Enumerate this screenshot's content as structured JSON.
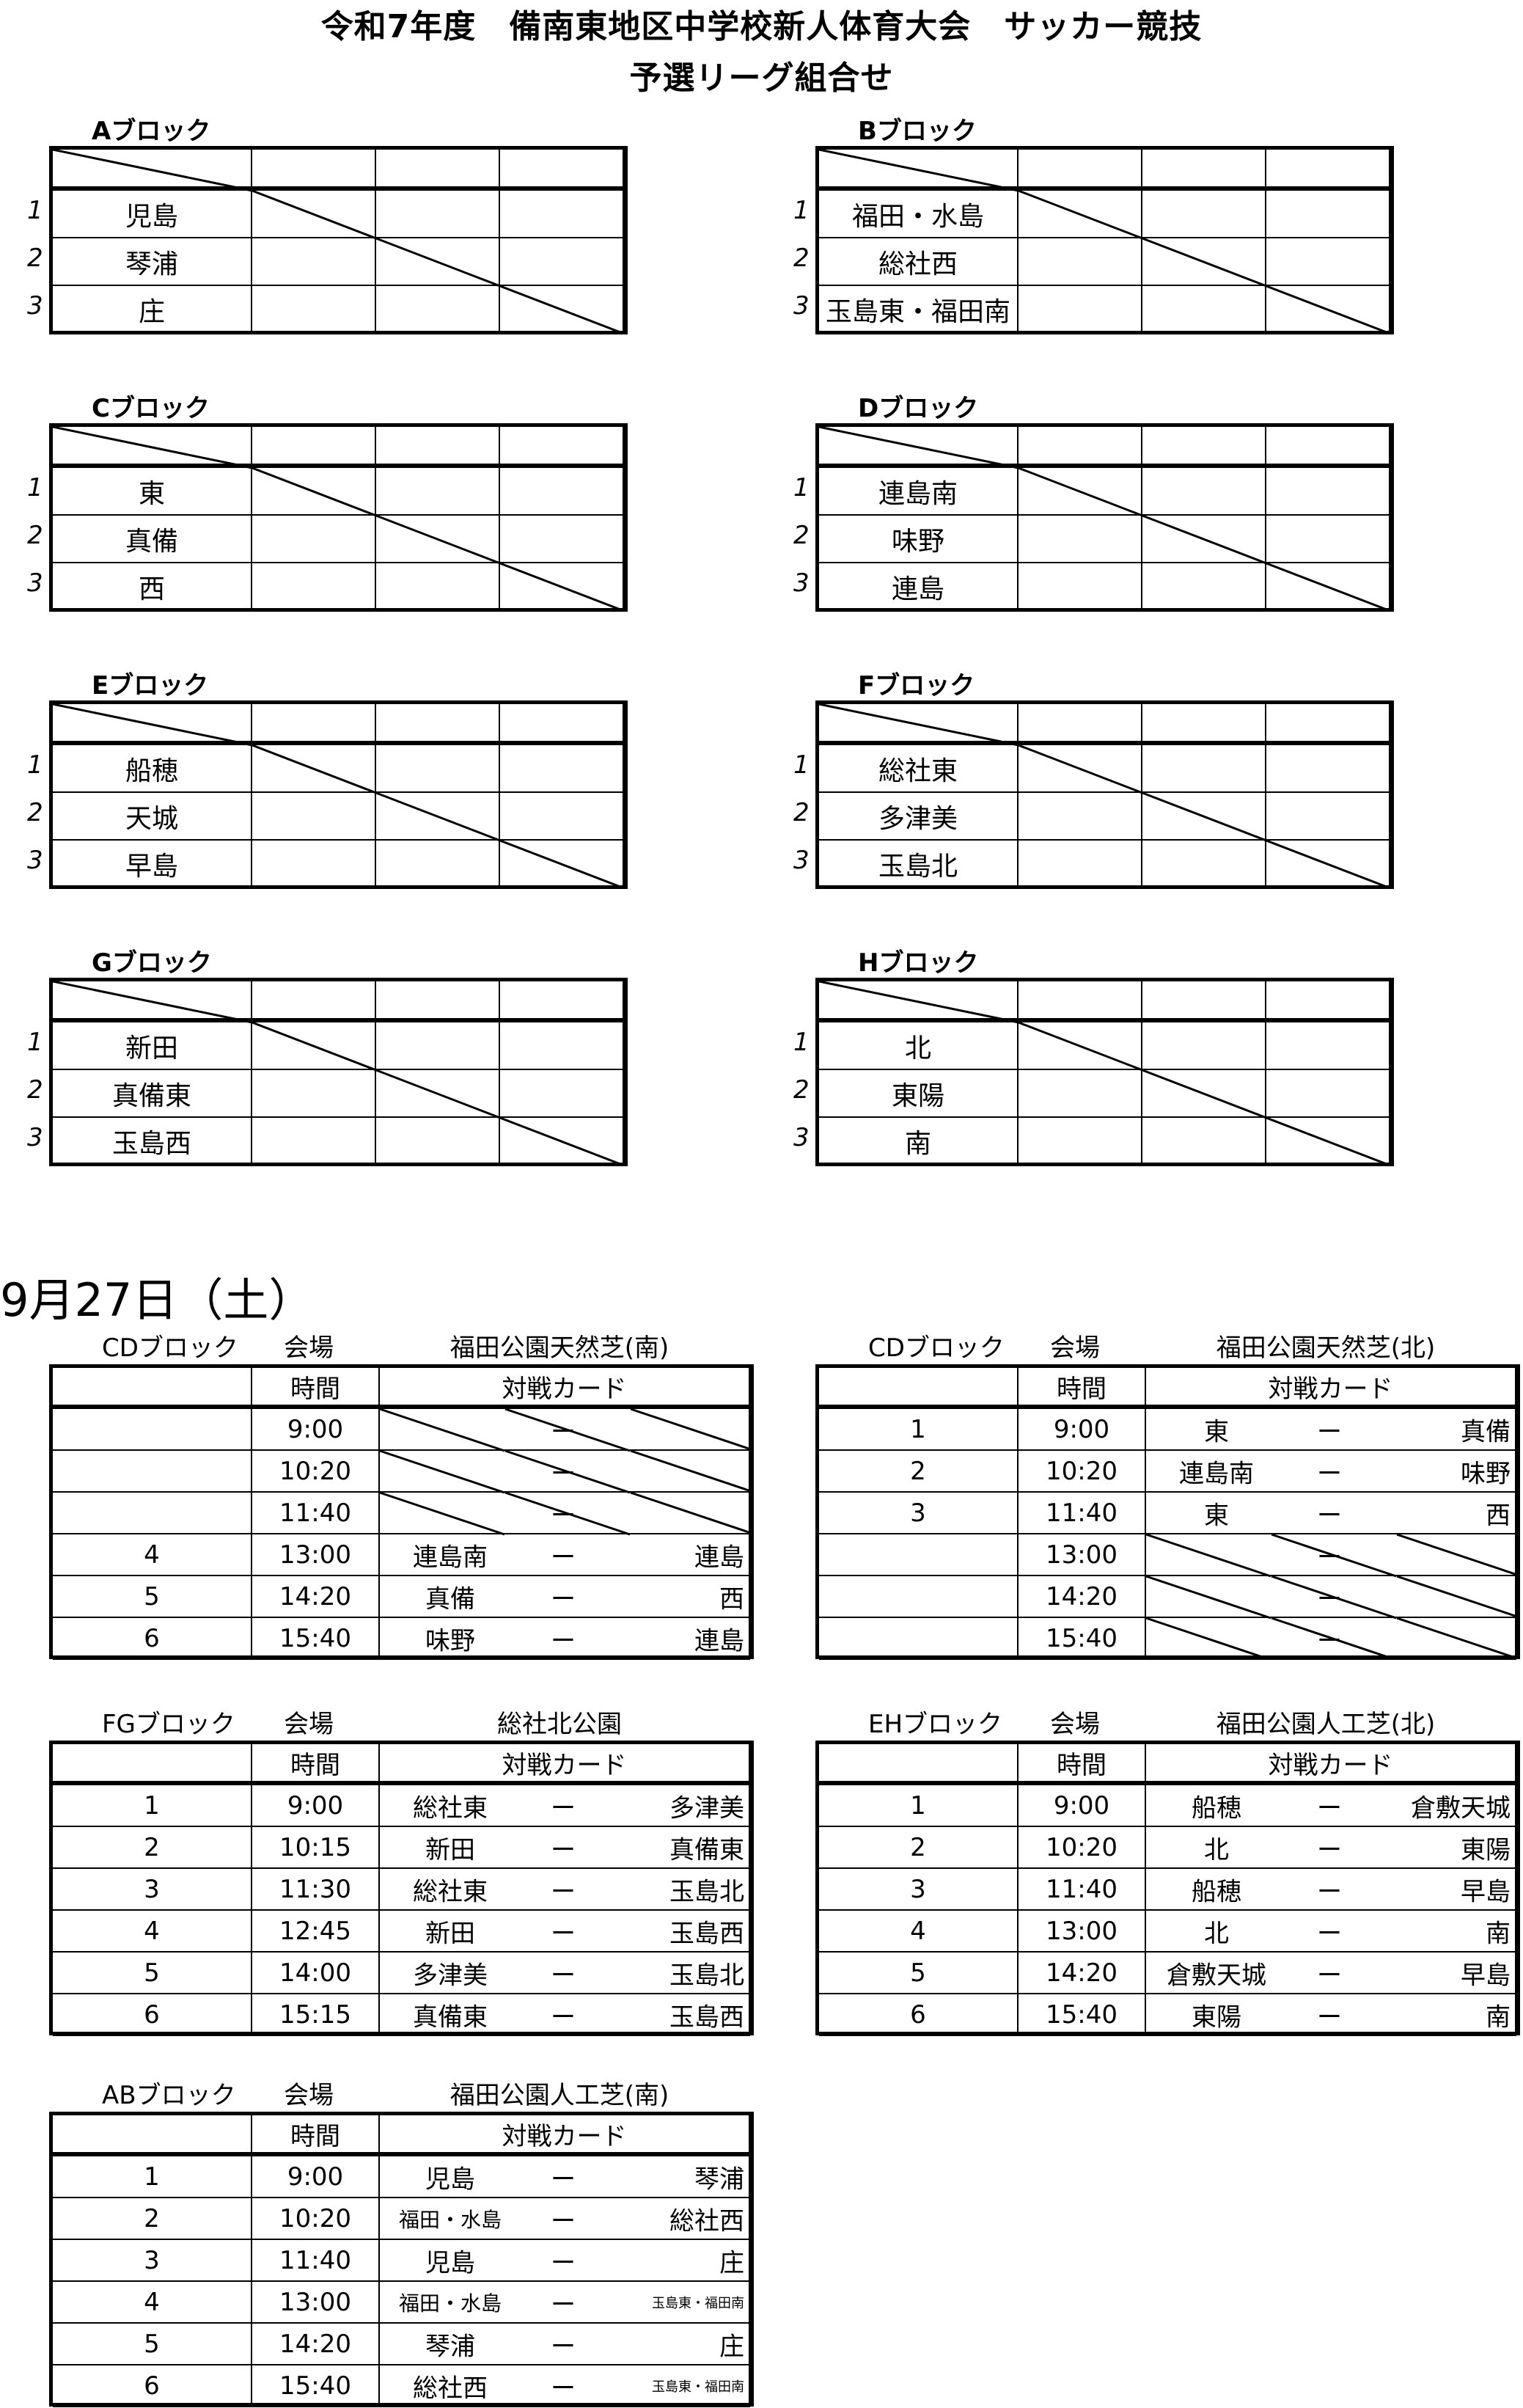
{
  "title": {
    "line1": "令和7年度　備南東地区中学校新人体育大会　サッカー競技",
    "line2": "予選リーグ組合せ"
  },
  "round_robin": [
    {
      "label": "Aブロック",
      "teams": [
        "児島",
        "琴浦",
        "庄"
      ]
    },
    {
      "label": "Bブロック",
      "teams": [
        "福田・水島",
        "総社西",
        "玉島東・福田南"
      ]
    },
    {
      "label": "Cブロック",
      "teams": [
        "東",
        "真備",
        "西"
      ]
    },
    {
      "label": "Dブロック",
      "teams": [
        "連島南",
        "味野",
        "連島"
      ]
    },
    {
      "label": "Eブロック",
      "teams": [
        "船穂",
        "天城",
        "早島"
      ]
    },
    {
      "label": "Fブロック",
      "teams": [
        "総社東",
        "多津美",
        "玉島北"
      ]
    },
    {
      "label": "Gブロック",
      "teams": [
        "新田",
        "真備東",
        "玉島西"
      ]
    },
    {
      "label": "Hブロック",
      "teams": [
        "北",
        "東陽",
        "南"
      ]
    }
  ],
  "row_numbers": [
    "1",
    "2",
    "3"
  ],
  "date": "9月27日（土）",
  "schedule_headers": {
    "venue_label": "会場",
    "time": "時間",
    "match": "対戦カード"
  },
  "schedules": [
    {
      "block": "CDブロック",
      "venue": "福田公園天然芝(南)",
      "rows": [
        {
          "no": "",
          "time": "9:00",
          "home": "",
          "sep": "ー",
          "away": "",
          "empty": true
        },
        {
          "no": "",
          "time": "10:20",
          "home": "",
          "sep": "ー",
          "away": "",
          "empty": true
        },
        {
          "no": "",
          "time": "11:40",
          "home": "",
          "sep": "ー",
          "away": "",
          "empty": true
        },
        {
          "no": "4",
          "time": "13:00",
          "home": "連島南",
          "sep": "ー",
          "away": "連島"
        },
        {
          "no": "5",
          "time": "14:20",
          "home": "真備",
          "sep": "ー",
          "away": "西"
        },
        {
          "no": "6",
          "time": "15:40",
          "home": "味野",
          "sep": "ー",
          "away": "連島"
        }
      ]
    },
    {
      "block": "CDブロック",
      "venue": "福田公園天然芝(北)",
      "rows": [
        {
          "no": "1",
          "time": "9:00",
          "home": "東",
          "sep": "ー",
          "away": "真備"
        },
        {
          "no": "2",
          "time": "10:20",
          "home": "連島南",
          "sep": "ー",
          "away": "味野"
        },
        {
          "no": "3",
          "time": "11:40",
          "home": "東",
          "sep": "ー",
          "away": "西"
        },
        {
          "no": "",
          "time": "13:00",
          "home": "",
          "sep": "ー",
          "away": "",
          "empty": true
        },
        {
          "no": "",
          "time": "14:20",
          "home": "",
          "sep": "ー",
          "away": "",
          "empty": true
        },
        {
          "no": "",
          "time": "15:40",
          "home": "",
          "sep": "ー",
          "away": "",
          "empty": true
        }
      ]
    },
    {
      "block": "FGブロック",
      "venue": "総社北公園",
      "rows": [
        {
          "no": "1",
          "time": "9:00",
          "home": "総社東",
          "sep": "ー",
          "away": "多津美"
        },
        {
          "no": "2",
          "time": "10:15",
          "home": "新田",
          "sep": "ー",
          "away": "真備東"
        },
        {
          "no": "3",
          "time": "11:30",
          "home": "総社東",
          "sep": "ー",
          "away": "玉島北"
        },
        {
          "no": "4",
          "time": "12:45",
          "home": "新田",
          "sep": "ー",
          "away": "玉島西"
        },
        {
          "no": "5",
          "time": "14:00",
          "home": "多津美",
          "sep": "ー",
          "away": "玉島北"
        },
        {
          "no": "6",
          "time": "15:15",
          "home": "真備東",
          "sep": "ー",
          "away": "玉島西"
        }
      ]
    },
    {
      "block": "EHブロック",
      "venue": "福田公園人工芝(北)",
      "rows": [
        {
          "no": "1",
          "time": "9:00",
          "home": "船穂",
          "sep": "ー",
          "away": "倉敷天城"
        },
        {
          "no": "2",
          "time": "10:20",
          "home": "北",
          "sep": "ー",
          "away": "東陽"
        },
        {
          "no": "3",
          "time": "11:40",
          "home": "船穂",
          "sep": "ー",
          "away": "早島"
        },
        {
          "no": "4",
          "time": "13:00",
          "home": "北",
          "sep": "ー",
          "away": "南"
        },
        {
          "no": "5",
          "time": "14:20",
          "home": "倉敷天城",
          "sep": "ー",
          "away": "早島"
        },
        {
          "no": "6",
          "time": "15:40",
          "home": "東陽",
          "sep": "ー",
          "away": "南"
        }
      ]
    },
    {
      "block": "ABブロック",
      "venue": "福田公園人工芝(南)",
      "rows": [
        {
          "no": "1",
          "time": "9:00",
          "home": "児島",
          "sep": "ー",
          "away": "琴浦"
        },
        {
          "no": "2",
          "time": "10:20",
          "home": "福田・水島",
          "sep": "ー",
          "away": "総社西"
        },
        {
          "no": "3",
          "time": "11:40",
          "home": "児島",
          "sep": "ー",
          "away": "庄"
        },
        {
          "no": "4",
          "time": "13:00",
          "home": "福田・水島",
          "sep": "ー",
          "away": "玉島東・福田南"
        },
        {
          "no": "5",
          "time": "14:20",
          "home": "琴浦",
          "sep": "ー",
          "away": "庄"
        },
        {
          "no": "6",
          "time": "15:40",
          "home": "総社西",
          "sep": "ー",
          "away": "玉島東・福田南"
        }
      ]
    }
  ]
}
